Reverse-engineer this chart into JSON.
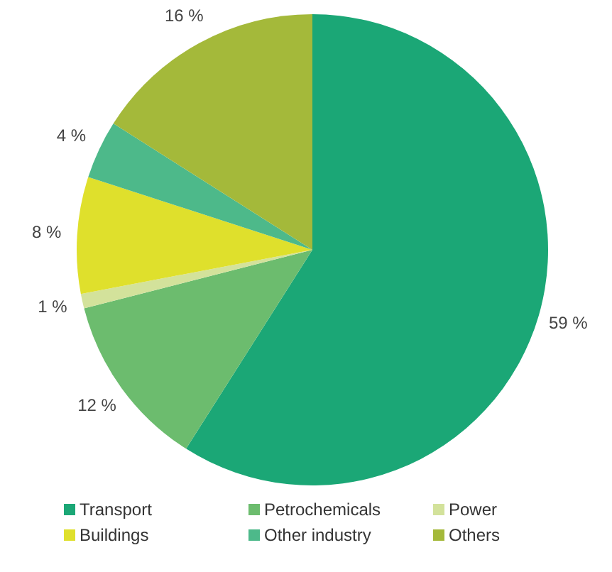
{
  "chart_data": {
    "type": "pie",
    "categories": [
      "Transport",
      "Petrochemicals",
      "Power",
      "Buildings",
      "Other industry",
      "Others"
    ],
    "values": [
      59,
      12,
      1,
      8,
      4,
      16
    ],
    "value_labels": [
      "59 %",
      "12 %",
      "1 %",
      "8 %",
      "4 %",
      "16 %"
    ],
    "colors": [
      "#1ba776",
      "#6cbc6e",
      "#d3e29b",
      "#dfe02c",
      "#4db98a",
      "#a4b93a"
    ],
    "legend": "bottom"
  }
}
